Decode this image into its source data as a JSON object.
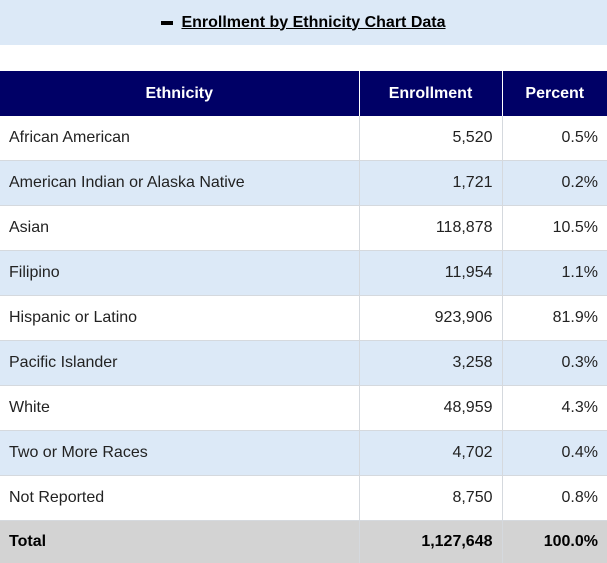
{
  "header": {
    "title": "Enrollment by Ethnicity Chart Data",
    "toggle_icon": "minus-icon"
  },
  "table": {
    "columns": [
      "Ethnicity",
      "Enrollment",
      "Percent"
    ],
    "rows": [
      {
        "ethnicity": "African American",
        "enrollment": "5,520",
        "percent": "0.5%"
      },
      {
        "ethnicity": "American Indian or Alaska Native",
        "enrollment": "1,721",
        "percent": "0.2%"
      },
      {
        "ethnicity": "Asian",
        "enrollment": "118,878",
        "percent": "10.5%"
      },
      {
        "ethnicity": "Filipino",
        "enrollment": "11,954",
        "percent": "1.1%"
      },
      {
        "ethnicity": "Hispanic or Latino",
        "enrollment": "923,906",
        "percent": "81.9%"
      },
      {
        "ethnicity": "Pacific Islander",
        "enrollment": "3,258",
        "percent": "0.3%"
      },
      {
        "ethnicity": "White",
        "enrollment": "48,959",
        "percent": "4.3%"
      },
      {
        "ethnicity": "Two or More Races",
        "enrollment": "4,702",
        "percent": "0.4%"
      },
      {
        "ethnicity": "Not Reported",
        "enrollment": "8,750",
        "percent": "0.8%"
      }
    ],
    "total": {
      "label": "Total",
      "enrollment": "1,127,648",
      "percent": "100.0%"
    }
  },
  "colors": {
    "header_bg": "#dce9f7",
    "table_header_bg": "#000066",
    "stripe_bg": "#dce9f7",
    "total_bg": "#d3d3d3"
  }
}
